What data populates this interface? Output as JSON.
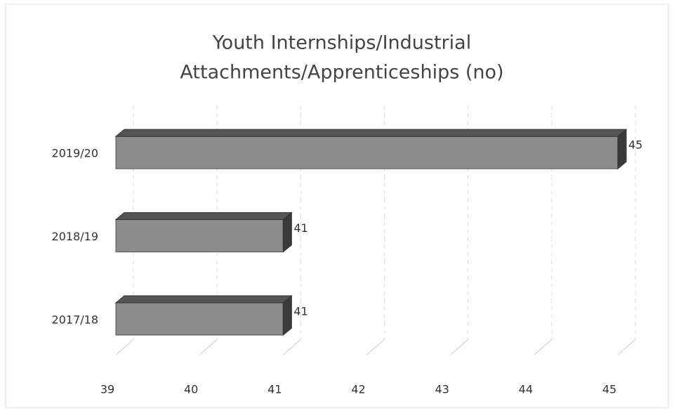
{
  "chart_data": {
    "type": "bar3d_horizontal",
    "title": [
      "Youth Internships/Industrial",
      "Attachments/Apprenticeships (no)"
    ],
    "categories": [
      "2017/18",
      "2018/19",
      "2019/20"
    ],
    "values": [
      41,
      41,
      45
    ],
    "color": "#8c8c8c",
    "xlim": [
      39,
      45
    ],
    "xticks": [
      39,
      40,
      41,
      42,
      43,
      44,
      45
    ],
    "grid": true
  }
}
